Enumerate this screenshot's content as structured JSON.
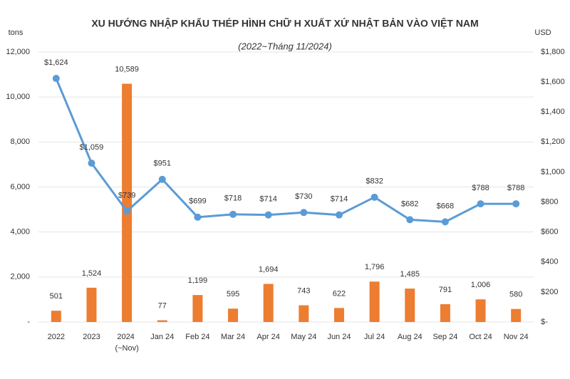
{
  "chart_data": {
    "type": "bar_line",
    "title": "XU HƯỚNG NHẬP KHẨU THÉP HÌNH CHỮ H XUẤT XỨ NHẬT BẢN VÀO VIỆT NAM",
    "subtitle": "(2022~Tháng 11/2024)",
    "y_label": "tons",
    "y2_label": "USD",
    "categories": [
      "2022",
      "2023",
      "2024 (~Nov)",
      "Jan 24",
      "Feb 24",
      "Mar 24",
      "Apr 24",
      "May 24",
      "Jun 24",
      "Jul 24",
      "Aug 24",
      "Sep 24",
      "Oct 24",
      "Nov 24"
    ],
    "series": [
      {
        "type": "bar",
        "color": "#ed7d31",
        "values": [
          501,
          1524,
          10589,
          77,
          1199,
          595,
          1694,
          743,
          622,
          1796,
          1485,
          791,
          1006,
          580
        ],
        "value_labels": [
          "501",
          "1,524",
          "10,589",
          "77",
          "1,199",
          "595",
          "1,694",
          "743",
          "622",
          "1,796",
          "1,485",
          "791",
          "1,006",
          "580"
        ]
      },
      {
        "type": "line",
        "axis": "y2",
        "color": "#5b9bd5",
        "values": [
          1624,
          1059,
          739,
          951,
          699,
          718,
          714,
          730,
          714,
          832,
          682,
          668,
          788,
          788
        ],
        "value_labels": [
          "$1,624",
          "$1,059",
          "$739",
          "$951",
          "$699",
          "$718",
          "$714",
          "$730",
          "$714",
          "$832",
          "$682",
          "$668",
          "$788",
          "$788"
        ]
      }
    ],
    "ylim": [
      0,
      12000
    ],
    "yticks": [
      {
        "value": 0,
        "label": "-"
      },
      {
        "value": 2000,
        "label": "2,000"
      },
      {
        "value": 4000,
        "label": "4,000"
      },
      {
        "value": 6000,
        "label": "6,000"
      },
      {
        "value": 8000,
        "label": "8,000"
      },
      {
        "value": 10000,
        "label": "10,000"
      },
      {
        "value": 12000,
        "label": "12,000"
      }
    ],
    "y2lim": [
      0,
      1800
    ],
    "y2ticks": [
      {
        "value": 0,
        "label": "$-"
      },
      {
        "value": 200,
        "label": "$200"
      },
      {
        "value": 400,
        "label": "$400"
      },
      {
        "value": 600,
        "label": "$600"
      },
      {
        "value": 800,
        "label": "$800"
      },
      {
        "value": 1000,
        "label": "$1,000"
      },
      {
        "value": 1200,
        "label": "$1,200"
      },
      {
        "value": 1400,
        "label": "$1,400"
      },
      {
        "value": 1600,
        "label": "$1,600"
      },
      {
        "value": 1800,
        "label": "$1,800"
      }
    ],
    "grid": true
  }
}
